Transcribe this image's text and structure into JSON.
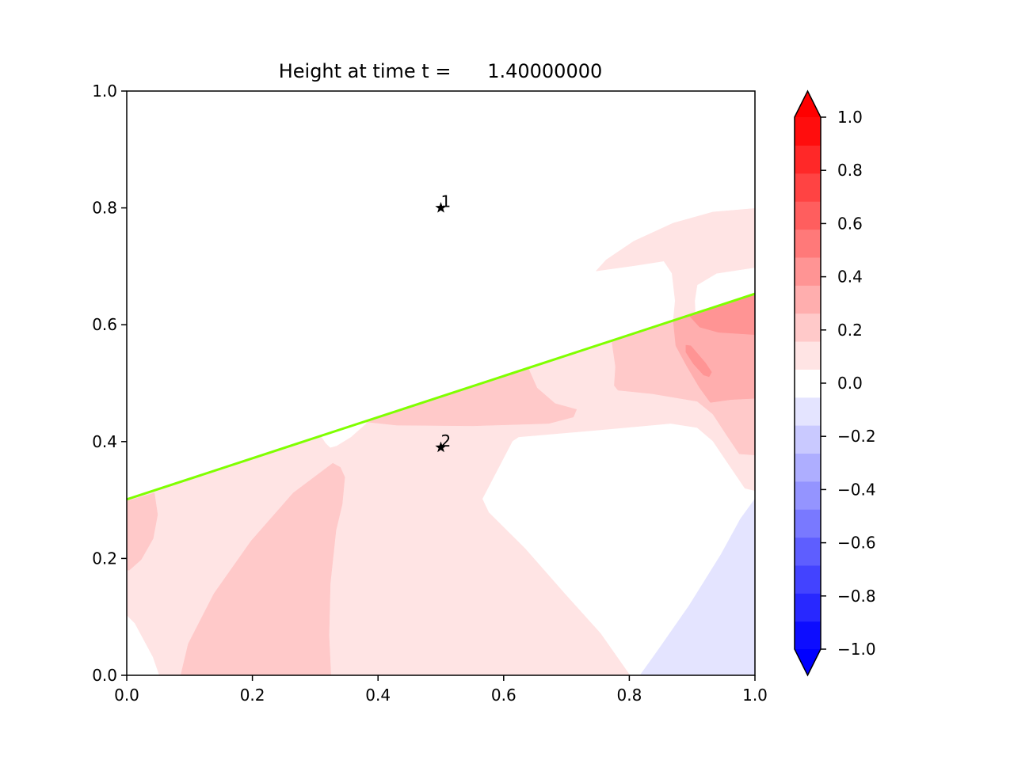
{
  "chart_data": {
    "type": "contour",
    "title": "Height at time t =      1.40000000",
    "xlim": [
      0,
      1
    ],
    "ylim": [
      0,
      1
    ],
    "xticks": [
      "0.0",
      "0.2",
      "0.4",
      "0.6",
      "0.8",
      "1.0"
    ],
    "yticks": [
      "0.0",
      "0.2",
      "0.4",
      "0.6",
      "0.8",
      "1.0"
    ],
    "grid": false,
    "colormap": "bwr",
    "levels_range": [
      -1,
      1
    ],
    "level_count": 20,
    "colorbar": {
      "range": [
        -1,
        1
      ],
      "extend": "both",
      "ticks": [
        "1.0",
        "0.8",
        "0.6",
        "0.4",
        "0.2",
        "0.0",
        "−0.2",
        "−0.4",
        "−0.6",
        "−0.8",
        "−1.0"
      ],
      "tick_values": [
        1.0,
        0.8,
        0.6,
        0.4,
        0.2,
        0.0,
        -0.2,
        -0.4,
        -0.6,
        -0.8,
        -1.0
      ],
      "placement": "right"
    },
    "regions": [
      {
        "value": 0.105,
        "points": [
          [
            0,
            0.301
          ],
          [
            0.87,
            0.607
          ],
          [
            0.873,
            0.641
          ],
          [
            0.868,
            0.688
          ],
          [
            0.855,
            0.709
          ],
          [
            0.807,
            0.701
          ],
          [
            0.747,
            0.692
          ],
          [
            0.763,
            0.711
          ],
          [
            0.807,
            0.743
          ],
          [
            0.87,
            0.774
          ],
          [
            0.933,
            0.793
          ],
          [
            1,
            0.799
          ],
          [
            1,
            0.698
          ],
          [
            0.939,
            0.688
          ],
          [
            0.908,
            0.668
          ],
          [
            0.904,
            0.641
          ],
          [
            0.905,
            0.619
          ],
          [
            1,
            0.653
          ],
          [
            1,
            0.316
          ],
          [
            0.984,
            0.32
          ],
          [
            0.955,
            0.366
          ],
          [
            0.933,
            0.401
          ],
          [
            0.908,
            0.424
          ],
          [
            0.866,
            0.431
          ],
          [
            0.754,
            0.42
          ],
          [
            0.624,
            0.408
          ],
          [
            0.614,
            0.401
          ],
          [
            0.566,
            0.302
          ],
          [
            0.576,
            0.279
          ],
          [
            0.634,
            0.217
          ],
          [
            0.697,
            0.14
          ],
          [
            0.754,
            0.072
          ],
          [
            0.801,
            0
          ],
          [
            0.052,
            0
          ],
          [
            0.042,
            0.031
          ],
          [
            0.013,
            0.089
          ],
          [
            0,
            0.103
          ]
        ]
      },
      {
        "value": 0.21,
        "points": [
          [
            0,
            0.298
          ],
          [
            0.044,
            0.312
          ],
          [
            0.049,
            0.275
          ],
          [
            0.042,
            0.234
          ],
          [
            0.023,
            0.198
          ],
          [
            0.004,
            0.18
          ],
          [
            0,
            0.18
          ]
        ]
      },
      {
        "value": 0.21,
        "points": [
          [
            0.086,
            0
          ],
          [
            0.098,
            0.054
          ],
          [
            0.139,
            0.14
          ],
          [
            0.198,
            0.23
          ],
          [
            0.265,
            0.312
          ],
          [
            0.328,
            0.363
          ],
          [
            0.34,
            0.356
          ],
          [
            0.347,
            0.339
          ],
          [
            0.343,
            0.293
          ],
          [
            0.333,
            0.248
          ],
          [
            0.324,
            0.157
          ],
          [
            0.322,
            0.068
          ],
          [
            0.325,
            0
          ]
        ]
      },
      {
        "value": 0.21,
        "points": [
          [
            0.378,
            0.434
          ],
          [
            0.639,
            0.526
          ],
          [
            0.653,
            0.492
          ],
          [
            0.682,
            0.465
          ],
          [
            0.716,
            0.455
          ],
          [
            0.711,
            0.442
          ],
          [
            0.672,
            0.431
          ],
          [
            0.551,
            0.427
          ],
          [
            0.43,
            0.428
          ]
        ]
      },
      {
        "value": 0.21,
        "points": [
          [
            0.772,
            0.573
          ],
          [
            0.778,
            0.528
          ],
          [
            0.776,
            0.496
          ],
          [
            0.782,
            0.488
          ],
          [
            0.836,
            0.482
          ],
          [
            0.908,
            0.469
          ],
          [
            0.933,
            0.447
          ],
          [
            0.955,
            0.411
          ],
          [
            0.975,
            0.379
          ],
          [
            1,
            0.377
          ],
          [
            1,
            0.653
          ]
        ]
      },
      {
        "value": 0.316,
        "points": [
          [
            0.87,
            0.607
          ],
          [
            0.874,
            0.564
          ],
          [
            0.892,
            0.528
          ],
          [
            0.912,
            0.492
          ],
          [
            0.929,
            0.467
          ],
          [
            0.962,
            0.472
          ],
          [
            1,
            0.474
          ],
          [
            1,
            0.653
          ]
        ]
      },
      {
        "value": 0.421,
        "points": [
          [
            0.895,
            0.616
          ],
          [
            0.912,
            0.596
          ],
          [
            0.942,
            0.587
          ],
          [
            1,
            0.583
          ],
          [
            1,
            0.653
          ]
        ]
      },
      {
        "value": 0.421,
        "points": [
          [
            0.89,
            0.565
          ],
          [
            0.898,
            0.564
          ],
          [
            0.921,
            0.535
          ],
          [
            0.931,
            0.519
          ],
          [
            0.927,
            0.511
          ],
          [
            0.918,
            0.514
          ],
          [
            0.902,
            0.533
          ],
          [
            0.89,
            0.553
          ]
        ]
      },
      {
        "value": 0.0,
        "points": [
          [
            0.309,
            0.41
          ],
          [
            0.317,
            0.397
          ],
          [
            0.324,
            0.39
          ],
          [
            0.334,
            0.393
          ],
          [
            0.357,
            0.408
          ],
          [
            0.381,
            0.431
          ],
          [
            0.381,
            0.437
          ]
        ]
      },
      {
        "value": -0.105,
        "points": [
          [
            0.817,
            0
          ],
          [
            0.845,
            0.042
          ],
          [
            0.895,
            0.119
          ],
          [
            0.946,
            0.207
          ],
          [
            0.977,
            0.268
          ],
          [
            1,
            0.302
          ],
          [
            1,
            0
          ]
        ]
      }
    ],
    "line": {
      "x": [
        0,
        1
      ],
      "y": [
        0.301,
        0.653
      ],
      "color": "#7fff00"
    },
    "markers": [
      {
        "x": 0.5,
        "y": 0.8,
        "label": "1",
        "marker": "star",
        "color": "#000000"
      },
      {
        "x": 0.5,
        "y": 0.39,
        "label": "2",
        "marker": "star",
        "color": "#000000"
      }
    ]
  }
}
